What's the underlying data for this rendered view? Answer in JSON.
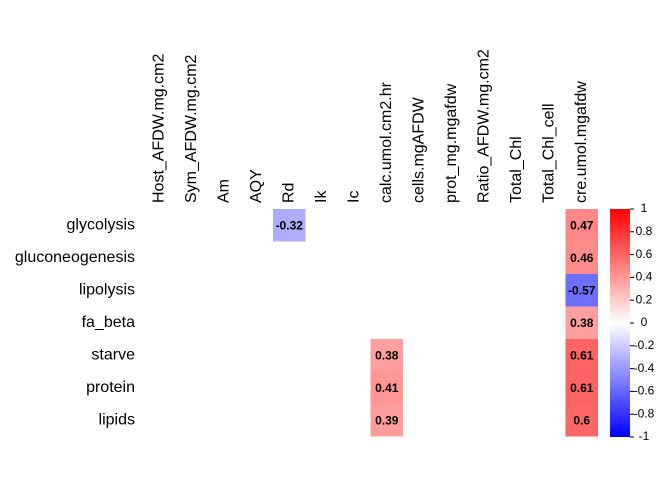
{
  "chart_data": {
    "type": "heatmap",
    "rows": [
      "glycolysis",
      "gluconeogenesis",
      "lipolysis",
      "fa_beta",
      "starve",
      "protein",
      "lipids"
    ],
    "columns": [
      "Host_AFDW.mg.cm2",
      "Sym_AFDW.mg.cm2",
      "Am",
      "AQY",
      "Rd",
      "Ik",
      "Ic",
      "calc.umol.cm2.hr",
      "cells.mgAFDW",
      "prot_mg.mgafdw",
      "Ratio_AFDW.mg.cm2",
      "Total_Chl",
      "Total_Chl_cell",
      "cre.umol.mgafdw"
    ],
    "values": [
      [
        null,
        null,
        null,
        null,
        -0.32,
        null,
        null,
        null,
        null,
        null,
        null,
        null,
        null,
        0.47
      ],
      [
        null,
        null,
        null,
        null,
        null,
        null,
        null,
        null,
        null,
        null,
        null,
        null,
        null,
        0.46
      ],
      [
        null,
        null,
        null,
        null,
        null,
        null,
        null,
        null,
        null,
        null,
        null,
        null,
        null,
        -0.57
      ],
      [
        null,
        null,
        null,
        null,
        null,
        null,
        null,
        null,
        null,
        null,
        null,
        null,
        null,
        0.38
      ],
      [
        null,
        null,
        null,
        null,
        null,
        null,
        null,
        0.38,
        null,
        null,
        null,
        null,
        null,
        0.61
      ],
      [
        null,
        null,
        null,
        null,
        null,
        null,
        null,
        0.41,
        null,
        null,
        null,
        null,
        null,
        0.61
      ],
      [
        null,
        null,
        null,
        null,
        null,
        null,
        null,
        0.39,
        null,
        null,
        null,
        null,
        null,
        0.6
      ]
    ],
    "colors": [
      "#0000ff",
      "#ffffff",
      "#ff0000"
    ],
    "clim": [
      -1,
      1
    ],
    "cticks": [
      1,
      0.8,
      0.6,
      0.4,
      0.2,
      0,
      -0.2,
      -0.4,
      -0.6,
      -0.8,
      -1
    ]
  }
}
